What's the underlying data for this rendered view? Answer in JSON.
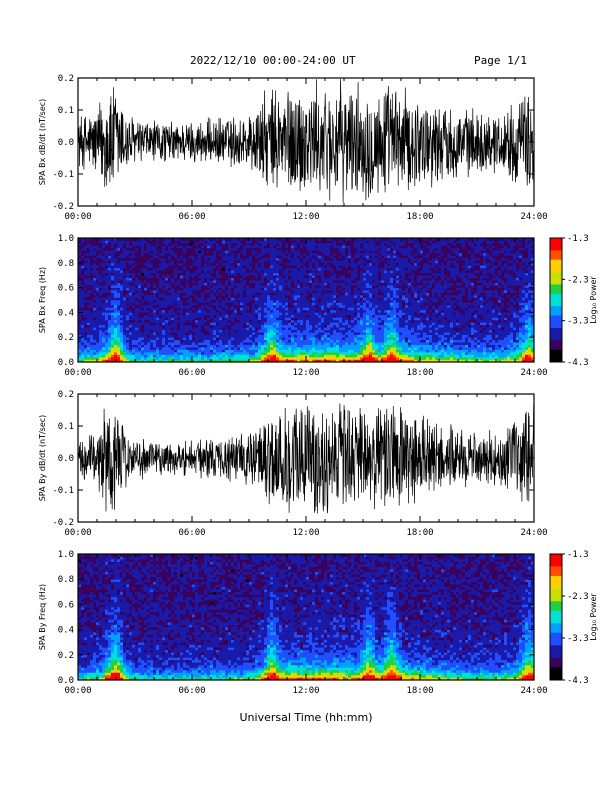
{
  "header": {
    "title": "2022/12/10  00:00-24:00 UT",
    "page": "Page 1/1"
  },
  "bottom_xlabel": "Universal Time (hh:mm)",
  "colors": {
    "trace": "#000000",
    "colormap": [
      "#000000",
      "#3a005a",
      "#1a1aa8",
      "#1f4fff",
      "#00a0ff",
      "#00e0d8",
      "#20d040",
      "#c8e000",
      "#ffd000",
      "#ff5000",
      "#ff0000"
    ]
  },
  "chart_data": [
    {
      "type": "line",
      "id": "bx-waveform",
      "title": "",
      "ylabel": "SPA Bx dB/dt (nT/sec)",
      "xlim": [
        0,
        24
      ],
      "ylim": [
        -0.2,
        0.2
      ],
      "xticks": [
        "00:00",
        "06:00",
        "12:00",
        "18:00",
        "24:00"
      ],
      "yticks": [
        "-0.2",
        "-0.1",
        "0.0",
        "0.1",
        "0.2"
      ],
      "yticks_values": [
        -0.2,
        -0.1,
        0.0,
        0.1,
        0.2
      ],
      "amplitude_envelope": {
        "hours": [
          0,
          1.0,
          1.5,
          2.0,
          2.5,
          3.0,
          5.0,
          7.0,
          9.0,
          10.0,
          11.0,
          13.0,
          15.0,
          16.5,
          18.0,
          20.0,
          22.0,
          23.5,
          24.0
        ],
        "amplitude": [
          0.09,
          0.12,
          0.2,
          0.2,
          0.12,
          0.08,
          0.07,
          0.08,
          0.1,
          0.18,
          0.2,
          0.2,
          0.2,
          0.2,
          0.16,
          0.12,
          0.1,
          0.16,
          0.2
        ]
      }
    },
    {
      "type": "heatmap",
      "id": "bx-spectrogram",
      "title": "",
      "ylabel": "SPA Bx Freq (Hz)",
      "xlim": [
        0,
        24
      ],
      "ylim": [
        0,
        1.0
      ],
      "xticks": [
        "00:00",
        "06:00",
        "12:00",
        "18:00",
        "24:00"
      ],
      "yticks": [
        "0.0",
        "0.2",
        "0.4",
        "0.6",
        "0.8",
        "1.0"
      ],
      "yticks_values": [
        0.0,
        0.2,
        0.4,
        0.6,
        0.8,
        1.0
      ],
      "colorbar": {
        "label": "Log₁₀ Power",
        "range": [
          -4.3,
          -1.3
        ],
        "ticks": [
          "-1.3",
          "-2.3",
          "-3.3",
          "-4.3"
        ],
        "tick_values": [
          -1.3,
          -2.3,
          -3.3,
          -4.3
        ]
      },
      "bursts_hours": [
        2.0,
        10.2,
        15.3,
        16.5,
        23.7
      ]
    },
    {
      "type": "line",
      "id": "by-waveform",
      "title": "",
      "ylabel": "SPA By dB/dt (nT/sec)",
      "xlim": [
        0,
        24
      ],
      "ylim": [
        -0.2,
        0.2
      ],
      "xticks": [
        "00:00",
        "06:00",
        "12:00",
        "18:00",
        "24:00"
      ],
      "yticks": [
        "-0.2",
        "-0.1",
        "0.0",
        "0.1",
        "0.2"
      ],
      "yticks_values": [
        -0.2,
        -0.1,
        0.0,
        0.1,
        0.2
      ],
      "amplitude_envelope": {
        "hours": [
          0,
          1.0,
          1.5,
          2.0,
          2.5,
          3.0,
          5.0,
          7.0,
          9.0,
          10.0,
          11.0,
          13.0,
          15.0,
          16.5,
          18.0,
          20.0,
          22.0,
          23.5,
          24.0
        ],
        "amplitude": [
          0.07,
          0.09,
          0.2,
          0.2,
          0.1,
          0.07,
          0.06,
          0.07,
          0.09,
          0.17,
          0.2,
          0.2,
          0.18,
          0.2,
          0.15,
          0.1,
          0.09,
          0.15,
          0.2
        ]
      }
    },
    {
      "type": "heatmap",
      "id": "by-spectrogram",
      "title": "",
      "ylabel": "SPA By Freq (Hz)",
      "xlim": [
        0,
        24
      ],
      "ylim": [
        0,
        1.0
      ],
      "xticks": [
        "00:00",
        "06:00",
        "12:00",
        "18:00",
        "24:00"
      ],
      "yticks": [
        "0.0",
        "0.2",
        "0.4",
        "0.6",
        "0.8",
        "1.0"
      ],
      "yticks_values": [
        0.0,
        0.2,
        0.4,
        0.6,
        0.8,
        1.0
      ],
      "colorbar": {
        "label": "Log₁₀ Power",
        "range": [
          -4.3,
          -1.3
        ],
        "ticks": [
          "-1.3",
          "-2.3",
          "-3.3",
          "-4.3"
        ],
        "tick_values": [
          -1.3,
          -2.3,
          -3.3,
          -4.3
        ]
      },
      "bursts_hours": [
        2.0,
        10.2,
        15.3,
        16.5,
        23.7
      ]
    }
  ]
}
